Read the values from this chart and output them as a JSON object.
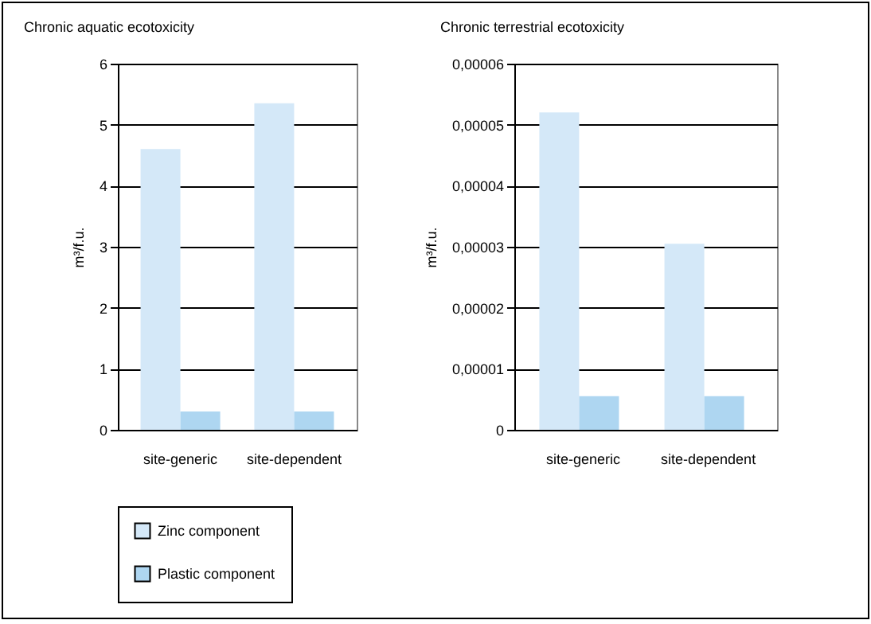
{
  "chart_data": [
    {
      "type": "bar",
      "title": "Chronic aquatic ecotoxicity",
      "ylabel": "m³/f.u.",
      "categories": [
        "site-generic",
        "site-dependent"
      ],
      "series": [
        {
          "name": "Zinc component",
          "color": "#d4e8f8",
          "values": [
            4.6,
            5.35
          ]
        },
        {
          "name": "Plastic component",
          "color": "#aed6f1",
          "values": [
            0.3,
            0.3
          ]
        }
      ],
      "ylim": [
        0,
        6
      ],
      "yticks": [
        0,
        1,
        2,
        3,
        4,
        5,
        6
      ],
      "grid": "y",
      "legend": "bottom left"
    },
    {
      "type": "bar",
      "title": "Chronic terrestrial ecotoxicity",
      "ylabel": "m³/f.u.",
      "categories": [
        "site-generic",
        "site-dependent"
      ],
      "series": [
        {
          "name": "Zinc component",
          "color": "#d4e8f8",
          "values": [
            5.2e-05,
            3.05e-05
          ]
        },
        {
          "name": "Plastic component",
          "color": "#aed6f1",
          "values": [
            5.5e-06,
            5.5e-06
          ]
        }
      ],
      "ylim": [
        0,
        6e-05
      ],
      "yticks": [
        0,
        {
          "value": 1e-05,
          "label": "0,00001"
        },
        {
          "value": 2e-05,
          "label": "0,00002"
        },
        {
          "value": 3e-05,
          "label": "0,00003"
        },
        {
          "value": 4e-05,
          "label": "0,00004"
        },
        {
          "value": 5e-05,
          "label": "0,00005"
        },
        {
          "value": 6e-05,
          "label": "0,00006"
        }
      ],
      "grid": "y"
    }
  ]
}
